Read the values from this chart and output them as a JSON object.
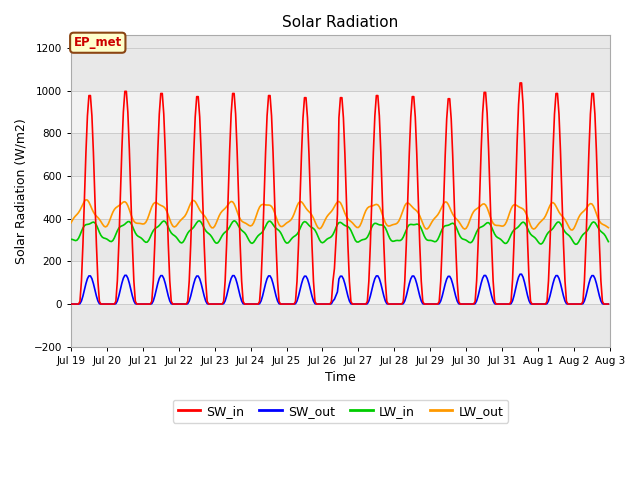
{
  "title": "Solar Radiation",
  "xlabel": "Time",
  "ylabel": "Solar Radiation (W/m2)",
  "ylim": [
    -200,
    1260
  ],
  "yticks": [
    -200,
    0,
    200,
    400,
    600,
    800,
    1000,
    1200
  ],
  "annotation_text": "EP_met",
  "annotation_bg": "#ffffcc",
  "annotation_border": "#8B4513",
  "bg_color": "#ffffff",
  "plot_bg": "#e8e8e8",
  "n_days": 15,
  "day_labels": [
    "Jul 19",
    "Jul 20",
    "Jul 21",
    "Jul 22",
    "Jul 23",
    "Jul 24",
    "Jul 25",
    "Jul 26",
    "Jul 27",
    "Jul 28",
    "Jul 29",
    "Jul 30",
    "Jul 31",
    "Aug 1",
    "Aug 2",
    "Aug 3"
  ],
  "series": {
    "SW_in": {
      "color": "#ff0000",
      "lw": 1.2
    },
    "SW_out": {
      "color": "#0000ff",
      "lw": 1.2
    },
    "LW_in": {
      "color": "#00cc00",
      "lw": 1.2
    },
    "LW_out": {
      "color": "#ff9900",
      "lw": 1.2
    }
  },
  "legend_entries": [
    "SW_in",
    "SW_out",
    "LW_in",
    "LW_out"
  ],
  "legend_colors": [
    "#ff0000",
    "#0000ff",
    "#00cc00",
    "#ff9900"
  ],
  "grid_band_color": "#d4d4d4",
  "grid_white_color": "#f2f2f2"
}
